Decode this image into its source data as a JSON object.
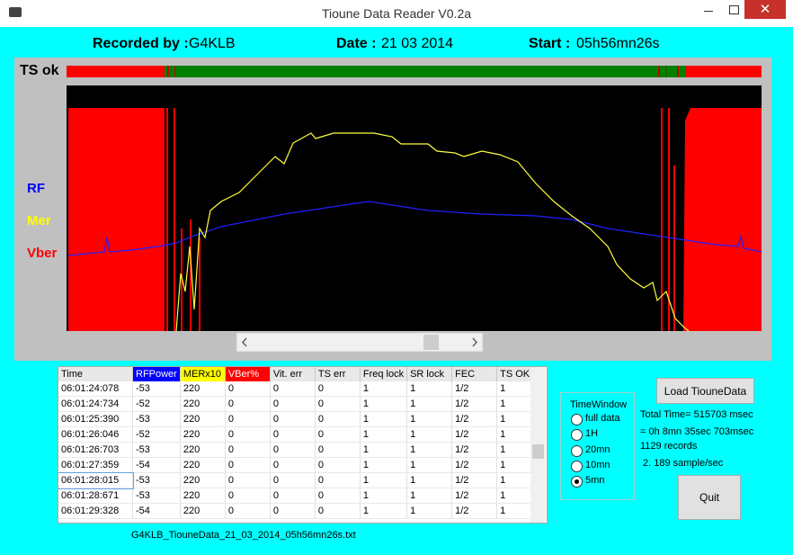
{
  "window": {
    "title": "Tioune Data Reader V0.2a"
  },
  "header": {
    "recorded_label": "Recorded by :",
    "recorded_value": "G4KLB",
    "date_label": "Date :",
    "date_value": "21 03 2014",
    "start_label": "Start :",
    "start_value": "05h56mn26s"
  },
  "plot": {
    "ts_label": "TS ok",
    "rf_label": "RF",
    "mer_label": "Mer",
    "vber_label": "Vber"
  },
  "table": {
    "columns": [
      "Time",
      "RFPower",
      "MERx10",
      "VBer%",
      "Vit. err",
      "TS err",
      "Freq lock",
      "SR lock",
      "FEC",
      "TS OK"
    ],
    "rows": [
      [
        "06:01:24:078",
        "-53",
        "220",
        "0",
        "0",
        "0",
        "1",
        "1",
        "1/2",
        "1"
      ],
      [
        "06:01:24:734",
        "-52",
        "220",
        "0",
        "0",
        "0",
        "1",
        "1",
        "1/2",
        "1"
      ],
      [
        "06:01:25:390",
        "-53",
        "220",
        "0",
        "0",
        "0",
        "1",
        "1",
        "1/2",
        "1"
      ],
      [
        "06:01:26:046",
        "-52",
        "220",
        "0",
        "0",
        "0",
        "1",
        "1",
        "1/2",
        "1"
      ],
      [
        "06:01:26:703",
        "-53",
        "220",
        "0",
        "0",
        "0",
        "1",
        "1",
        "1/2",
        "1"
      ],
      [
        "06:01:27:359",
        "-54",
        "220",
        "0",
        "0",
        "0",
        "1",
        "1",
        "1/2",
        "1"
      ],
      [
        "06:01:28:015",
        "-53",
        "220",
        "0",
        "0",
        "0",
        "1",
        "1",
        "1/2",
        "1"
      ],
      [
        "06:01:28:671",
        "-53",
        "220",
        "0",
        "0",
        "0",
        "1",
        "1",
        "1/2",
        "1"
      ],
      [
        "06:01:29:328",
        "-54",
        "220",
        "0",
        "0",
        "0",
        "1",
        "1",
        "1/2",
        "1"
      ]
    ]
  },
  "filename": "G4KLB_TiouneData_21_03_2014_05h56mn26s.txt",
  "time_window": {
    "title": "TimeWindow",
    "options": [
      "full data",
      "1H",
      "20mn",
      "10mn",
      "5mn"
    ],
    "selected": 4
  },
  "buttons": {
    "load": "Load TiouneData",
    "quit": "Quit"
  },
  "stats": [
    "Total Time= 515703 msec",
    "= 0h 8mn 35sec 703msec",
    "1129 records",
    "2. 189 sample/sec"
  ]
}
